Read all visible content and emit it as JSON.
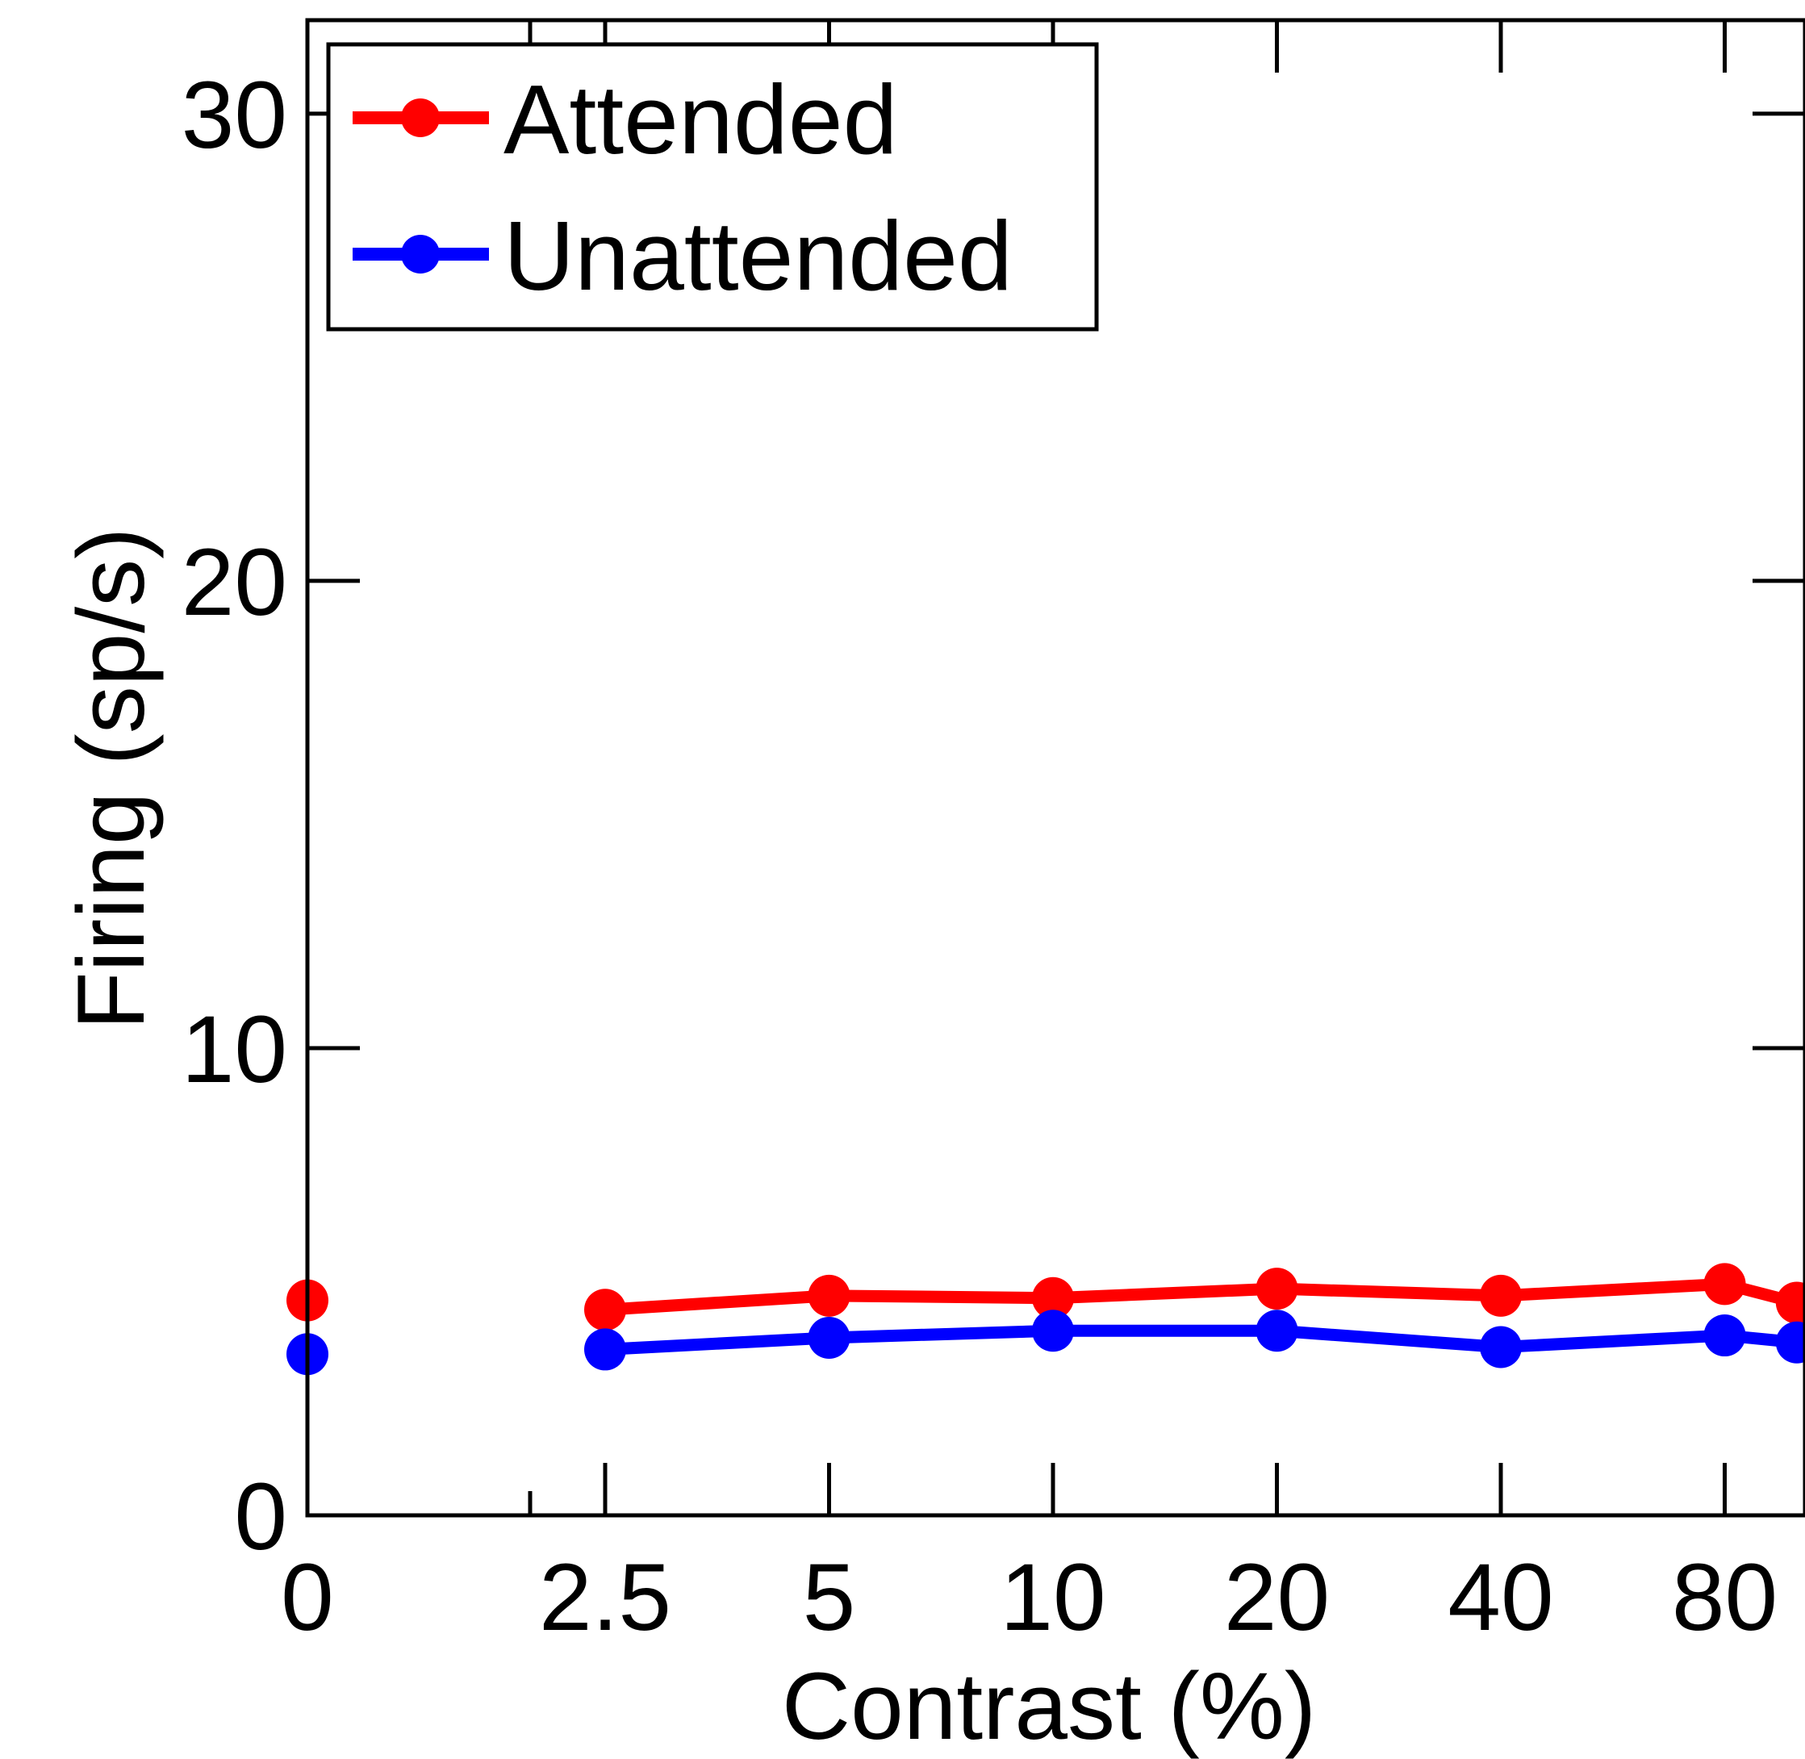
{
  "chart_data": {
    "type": "line",
    "xlabel": "Contrast (%)",
    "ylabel": "Firing (sp/s)",
    "x_scale": "log2 contrast with baseline at 0",
    "x_ticks": [
      "0",
      "2.5",
      "5",
      "10",
      "20",
      "40",
      "80"
    ],
    "y_ticks": [
      "0",
      "10",
      "20",
      "30"
    ],
    "ylim": [
      0,
      32
    ],
    "grid": false,
    "legend_position": "top-left",
    "series": [
      {
        "name": "Attended",
        "color": "#ff0000",
        "baseline": 4.6,
        "x": [
          2.5,
          5,
          10,
          20,
          40,
          80,
          100
        ],
        "values": [
          4.4,
          4.7,
          4.65,
          4.85,
          4.7,
          4.95,
          4.55
        ]
      },
      {
        "name": "Unattended",
        "color": "#0000ff",
        "baseline": 3.45,
        "x": [
          2.5,
          5,
          10,
          20,
          40,
          80,
          100
        ],
        "values": [
          3.55,
          3.8,
          3.95,
          3.95,
          3.6,
          3.85,
          3.7
        ]
      }
    ]
  }
}
